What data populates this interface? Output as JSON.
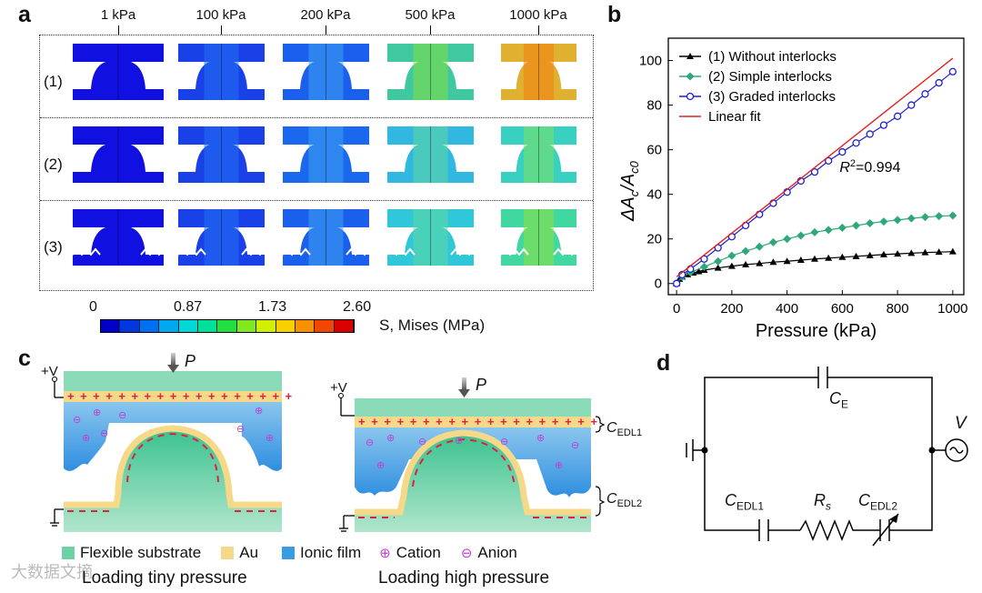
{
  "panel_a": {
    "label": "a",
    "pressures": [
      "1 kPa",
      "100 kPa",
      "200 kPa",
      "500 kPa",
      "1000 kPa"
    ],
    "rows": [
      "(1)",
      "(2)",
      "(3)"
    ],
    "colorbar": {
      "ticks": [
        "0",
        "0.87",
        "1.73",
        "2.60"
      ],
      "label": "S, Mises (MPa)",
      "colors": [
        "#0000c8",
        "#0038e0",
        "#0070f0",
        "#00a8f0",
        "#00d8d8",
        "#00e098",
        "#20e040",
        "#80e820",
        "#d0f000",
        "#f8d000",
        "#f89000",
        "#f04800",
        "#d80000"
      ]
    }
  },
  "panel_b": {
    "label": "b",
    "chart_data": {
      "type": "line",
      "xlabel": "Pressure (kPa)",
      "ylabel": "ΔA",
      "ylabel_sub1": "c",
      "ylabel_mid": "/A",
      "ylabel_sub2": "c0",
      "xlim": [
        -30,
        1040
      ],
      "ylim": [
        -5,
        110
      ],
      "xticks": [
        0,
        200,
        400,
        600,
        800,
        1000
      ],
      "yticks": [
        0,
        20,
        40,
        60,
        80,
        100
      ],
      "annotation": "R",
      "annotation_sup": "2",
      "annotation_value": "=0.994",
      "series": [
        {
          "name": "(1) Without interlocks",
          "color": "#000000",
          "marker": "triangle",
          "x": [
            0,
            10,
            20,
            40,
            60,
            80,
            100,
            150,
            200,
            250,
            300,
            350,
            400,
            450,
            500,
            550,
            600,
            650,
            700,
            750,
            800,
            850,
            900,
            950,
            1000
          ],
          "y": [
            0,
            2,
            3,
            4,
            4.8,
            5.4,
            6,
            7,
            7.8,
            8.5,
            9,
            9.6,
            10,
            10.5,
            11,
            11.4,
            11.8,
            12.2,
            12.6,
            13,
            13.3,
            13.6,
            13.9,
            14.1,
            14.3
          ]
        },
        {
          "name": "(2) Simple interlocks",
          "color": "#2ea877",
          "marker": "diamond",
          "x": [
            0,
            20,
            50,
            100,
            150,
            200,
            250,
            300,
            350,
            400,
            450,
            500,
            550,
            600,
            650,
            700,
            750,
            800,
            850,
            900,
            950,
            1000
          ],
          "y": [
            0,
            3,
            5,
            7.5,
            10,
            12.5,
            14.5,
            16.5,
            18.5,
            20,
            21.5,
            23,
            24,
            25,
            26,
            27,
            27.8,
            28.5,
            29.2,
            29.8,
            30.2,
            30.5
          ]
        },
        {
          "name": "(3) Graded interlocks",
          "color": "#1f1fd0",
          "marker": "circle",
          "x": [
            0,
            20,
            50,
            100,
            150,
            200,
            250,
            300,
            350,
            400,
            450,
            500,
            550,
            600,
            650,
            700,
            750,
            800,
            850,
            900,
            950,
            1000
          ],
          "y": [
            0,
            4,
            6.5,
            11,
            16,
            21,
            26,
            31,
            36,
            41,
            46,
            50,
            55,
            59,
            63,
            67,
            71,
            75,
            80,
            85,
            90,
            95
          ]
        },
        {
          "name": "Linear fit",
          "color": "#e02020",
          "marker": "none",
          "x": [
            0,
            1000
          ],
          "y": [
            3,
            101
          ]
        }
      ]
    }
  },
  "panel_c": {
    "label": "c",
    "force": "P",
    "voltage": "+V",
    "edl1_main": "C",
    "edl1_sub": "EDL1",
    "edl2_main": "C",
    "edl2_sub": "EDL2",
    "caption_left": "Loading tiny pressure",
    "caption_right": "Loading high pressure",
    "legend": {
      "substrate": "Flexible substrate",
      "au": "Au",
      "ionic": "Ionic film",
      "cation": "Cation",
      "anion": "Anion"
    },
    "colors": {
      "substrate": "#6fcfa7",
      "au": "#f6d889",
      "ionic": "#3a9be0",
      "cation": "#c040d0",
      "anion": "#c040d0",
      "charge": "#e02040"
    }
  },
  "panel_d": {
    "label": "d",
    "ce_main": "C",
    "ce_sub": "E",
    "v_label": "V",
    "cedl1_main": "C",
    "cedl1_sub": "EDL1",
    "rs_main": "R",
    "rs_sub": "s",
    "cedl2_main": "C",
    "cedl2_sub": "EDL2"
  },
  "watermark": "大数据文摘"
}
